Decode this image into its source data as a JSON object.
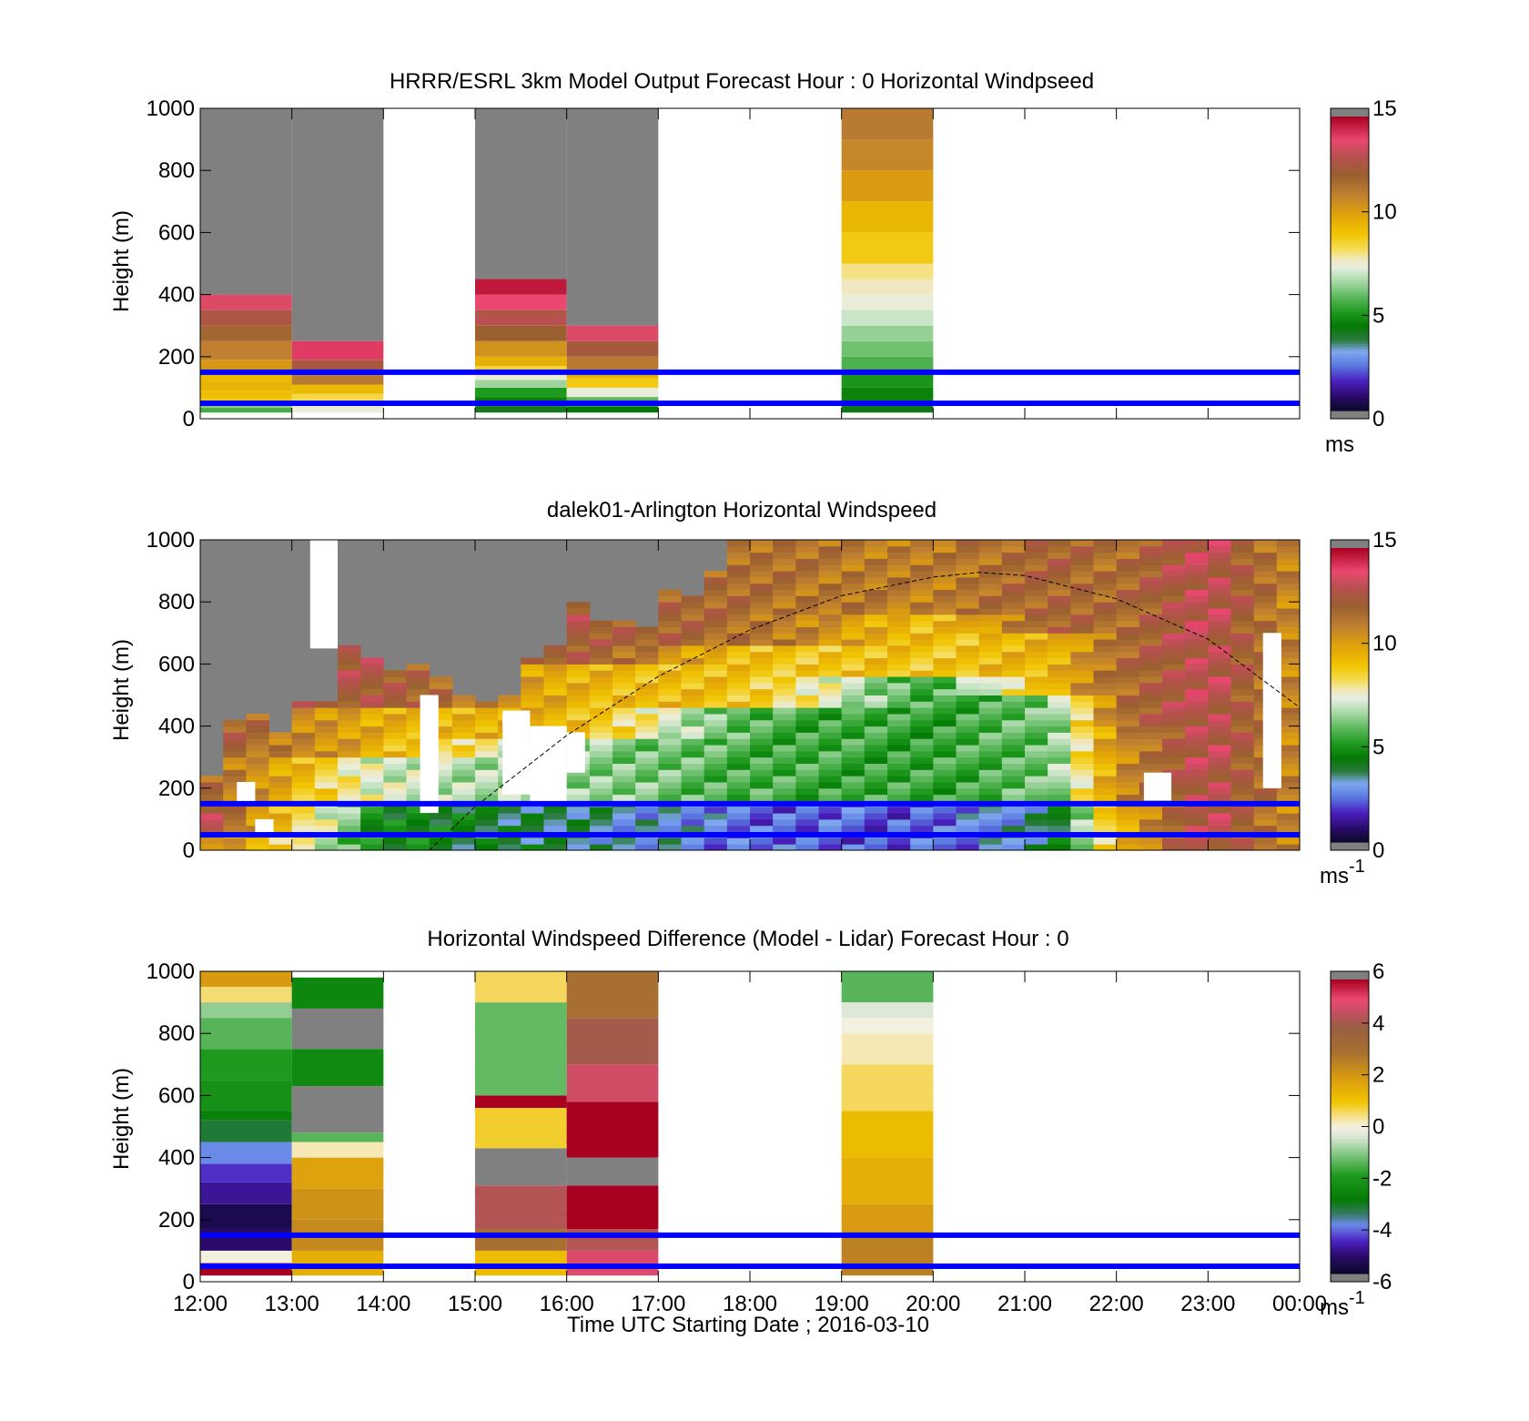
{
  "chart_data": [
    {
      "type": "heatmap",
      "title": "HRRR/ESRL 3km Model Output   Forecast Hour : 0 Horizontal Windpseed",
      "xlabel": "",
      "ylabel": "Height (m)",
      "x_ticks": [
        "12:00",
        "13:00",
        "14:00",
        "15:00",
        "16:00",
        "17:00",
        "18:00",
        "19:00",
        "20:00",
        "21:00",
        "22:00",
        "23:00",
        "00:00"
      ],
      "show_x_tick_labels": false,
      "ylim": [
        0,
        1000
      ],
      "y_ticks": [
        "0",
        "200",
        "400",
        "600",
        "800",
        "1000"
      ],
      "colorbar": {
        "ticks": [
          "0",
          "5",
          "10",
          "15"
        ],
        "range": [
          0,
          15
        ],
        "unit": "ms",
        "unit_sup": ""
      },
      "hlines_m": [
        150,
        50
      ],
      "columns": [
        {
          "x_start_h": 0,
          "x_end_h": 1,
          "top_m": 400,
          "levels": [
            [
              20,
              35,
              5.5
            ],
            [
              35,
              50,
              6.3
            ],
            [
              50,
              65,
              8.8
            ],
            [
              65,
              90,
              9.2
            ],
            [
              90,
              120,
              9.5
            ],
            [
              120,
              150,
              9.3
            ],
            [
              150,
              190,
              10.3
            ],
            [
              190,
              250,
              11.0
            ],
            [
              250,
              300,
              11.8
            ],
            [
              300,
              350,
              12.6
            ],
            [
              350,
              400,
              13.6
            ]
          ]
        },
        {
          "x_start_h": 1,
          "x_end_h": 2,
          "top_m": 250,
          "levels": [
            [
              20,
              40,
              7.4
            ],
            [
              40,
              60,
              7.8
            ],
            [
              60,
              80,
              8.4
            ],
            [
              80,
              110,
              9.3
            ],
            [
              110,
              140,
              11.2
            ],
            [
              140,
              190,
              12.5
            ],
            [
              190,
              250,
              14.0
            ]
          ]
        },
        {
          "x_start_h": 3,
          "x_end_h": 4,
          "top_m": 450,
          "levels": [
            [
              20,
              40,
              4.0
            ],
            [
              40,
              70,
              4.4
            ],
            [
              70,
              100,
              5.0
            ],
            [
              100,
              125,
              6.5
            ],
            [
              125,
              150,
              7.4
            ],
            [
              150,
              170,
              8.5
            ],
            [
              170,
              200,
              9.6
            ],
            [
              200,
              250,
              10.5
            ],
            [
              250,
              300,
              12.0
            ],
            [
              300,
              330,
              13.0
            ],
            [
              330,
              350,
              12.6
            ],
            [
              350,
              400,
              13.8
            ],
            [
              400,
              450,
              14.6
            ]
          ]
        },
        {
          "x_start_h": 4,
          "x_end_h": 5,
          "top_m": 300,
          "levels": [
            [
              20,
              40,
              4.3
            ],
            [
              40,
              70,
              5.8
            ],
            [
              70,
              100,
              7.4
            ],
            [
              100,
              130,
              8.8
            ],
            [
              130,
              160,
              9.5
            ],
            [
              160,
              200,
              11.2
            ],
            [
              200,
              250,
              12.4
            ],
            [
              250,
              300,
              13.6
            ]
          ]
        },
        {
          "x_start_h": 7,
          "x_end_h": 8,
          "top_m": 1000,
          "levels": [
            [
              20,
              50,
              4.1
            ],
            [
              50,
              100,
              4.5
            ],
            [
              100,
              150,
              4.9
            ],
            [
              150,
              200,
              5.6
            ],
            [
              200,
              250,
              6.0
            ],
            [
              250,
              300,
              6.4
            ],
            [
              300,
              350,
              7.0
            ],
            [
              350,
              400,
              7.4
            ],
            [
              400,
              450,
              7.7
            ],
            [
              450,
              500,
              8.0
            ],
            [
              500,
              600,
              8.8
            ],
            [
              600,
              700,
              9.4
            ],
            [
              700,
              800,
              10.2
            ],
            [
              800,
              900,
              10.8
            ],
            [
              900,
              1000,
              11.2
            ]
          ]
        }
      ]
    },
    {
      "type": "heatmap",
      "title": "dalek01-Arlington  Horizontal Windspeed",
      "xlabel": "",
      "ylabel": "Height (m)",
      "x_ticks": [
        "12:00",
        "13:00",
        "14:00",
        "15:00",
        "16:00",
        "17:00",
        "18:00",
        "19:00",
        "20:00",
        "21:00",
        "22:00",
        "23:00",
        "00:00"
      ],
      "show_x_tick_labels": false,
      "ylim": [
        0,
        1000
      ],
      "y_ticks": [
        "0",
        "200",
        "400",
        "600",
        "800",
        "1000"
      ],
      "colorbar": {
        "ticks": [
          "0",
          "5",
          "10",
          "15"
        ],
        "range": [
          0,
          15
        ],
        "unit": "ms",
        "unit_sup": "-1"
      },
      "hlines_m": [
        150,
        50
      ],
      "column_width_h": 0.25,
      "column_tops_m": [
        240,
        420,
        430,
        370,
        470,
        470,
        650,
        610,
        580,
        590,
        560,
        490,
        480,
        490,
        620,
        650,
        800,
        740,
        730,
        720,
        840,
        820,
        900,
        1000,
        1000,
        1000,
        1000,
        1000,
        1000,
        1000,
        1000,
        1000,
        1000,
        1000,
        1000,
        1000,
        1000,
        1000,
        1000,
        1000,
        1000,
        1000,
        1000,
        1000,
        1000,
        1000,
        1000,
        1000
      ],
      "profile_by_hour": [
        {
          "h": 0,
          "levels": [
            [
              0,
              50,
              11.5
            ],
            [
              50,
              150,
              13.2
            ],
            [
              150,
              300,
              12.0
            ],
            [
              300,
              1000,
              12.5
            ]
          ]
        },
        {
          "h": 2,
          "levels": [
            [
              0,
              150,
              4.5
            ],
            [
              150,
              300,
              7.0
            ],
            [
              300,
              450,
              9.5
            ],
            [
              450,
              1000,
              12.5
            ]
          ]
        },
        {
          "h": 4,
          "levels": [
            [
              0,
              150,
              3.5
            ],
            [
              150,
              350,
              6.5
            ],
            [
              350,
              600,
              9.5
            ],
            [
              600,
              1000,
              12.5
            ]
          ]
        },
        {
          "h": 6,
          "levels": [
            [
              0,
              150,
              2.2
            ],
            [
              150,
              450,
              5.5
            ],
            [
              450,
              650,
              9.0
            ],
            [
              650,
              1000,
              11.5
            ]
          ]
        },
        {
          "h": 8,
          "levels": [
            [
              0,
              150,
              2.0
            ],
            [
              150,
              550,
              5.2
            ],
            [
              550,
              750,
              9.0
            ],
            [
              750,
              1000,
              11.0
            ]
          ]
        },
        {
          "h": 9.3,
          "levels": [
            [
              0,
              150,
              3.5
            ],
            [
              150,
              500,
              6.0
            ],
            [
              500,
              700,
              9.5
            ],
            [
              700,
              1000,
              12.0
            ]
          ]
        },
        {
          "h": 10,
          "levels": [
            [
              0,
              150,
              9.5
            ],
            [
              150,
              400,
              10.5
            ],
            [
              400,
              1000,
              11.5
            ]
          ]
        },
        {
          "h": 11,
          "levels": [
            [
              0,
              1000,
              13.2
            ]
          ]
        },
        {
          "h": 12,
          "levels": [
            [
              0,
              1000,
              10.5
            ]
          ]
        }
      ],
      "missing_streaks": [
        [
          0.4,
          0.6,
          150,
          220
        ],
        [
          0.6,
          0.8,
          50,
          100
        ],
        [
          1.2,
          1.5,
          650,
          1000
        ],
        [
          2.4,
          2.6,
          120,
          500
        ],
        [
          3.3,
          3.6,
          180,
          450
        ],
        [
          3.6,
          4.0,
          150,
          400
        ],
        [
          4.0,
          4.2,
          250,
          380
        ],
        [
          10.3,
          10.6,
          160,
          250
        ],
        [
          11.6,
          11.8,
          200,
          700
        ]
      ],
      "elevation_curve": {
        "x_h": [
          2.5,
          3,
          4,
          5,
          6,
          7,
          8,
          8.5,
          9,
          10,
          11,
          12
        ],
        "height_m": [
          0,
          140,
          370,
          560,
          710,
          820,
          880,
          895,
          885,
          810,
          680,
          460
        ]
      }
    },
    {
      "type": "heatmap",
      "title": "Horizontal Windspeed Difference (Model - Lidar) Forecast Hour : 0",
      "xlabel": "Time UTC  Starting Date ; 2016-03-10",
      "ylabel": "Height (m)",
      "x_ticks": [
        "12:00",
        "13:00",
        "14:00",
        "15:00",
        "16:00",
        "17:00",
        "18:00",
        "19:00",
        "20:00",
        "21:00",
        "22:00",
        "23:00",
        "00:00"
      ],
      "show_x_tick_labels": true,
      "ylim": [
        0,
        1000
      ],
      "y_ticks": [
        "0",
        "200",
        "400",
        "600",
        "800",
        "1000"
      ],
      "colorbar": {
        "ticks": [
          "-6",
          "-4",
          "-2",
          "0",
          "2",
          "4",
          "6"
        ],
        "range": [
          -6,
          6
        ],
        "unit": "ms",
        "unit_sup": "-1"
      },
      "hlines_m": [
        150,
        50
      ],
      "columns": [
        {
          "x_start_h": 0,
          "x_end_h": 1,
          "top_m": 1000,
          "levels": [
            [
              20,
              60,
              6.0
            ],
            [
              60,
              100,
              0.0
            ],
            [
              100,
              170,
              -5.3
            ],
            [
              170,
              250,
              -5.6
            ],
            [
              250,
              320,
              -5.0
            ],
            [
              320,
              380,
              -4.6
            ],
            [
              380,
              450,
              -4.0
            ],
            [
              450,
              520,
              -3.3
            ],
            [
              520,
              550,
              -2.8
            ],
            [
              550,
              650,
              -2.3
            ],
            [
              650,
              750,
              -2.0
            ],
            [
              750,
              850,
              -1.5
            ],
            [
              850,
              900,
              -1.0
            ],
            [
              900,
              950,
              0.5
            ],
            [
              950,
              1000,
              2.0
            ]
          ]
        },
        {
          "x_start_h": 1,
          "x_end_h": 2,
          "top_m": 980,
          "levels": [
            [
              20,
              100,
              1.5
            ],
            [
              100,
              200,
              2.4
            ],
            [
              200,
              300,
              2.2
            ],
            [
              300,
              400,
              1.8
            ],
            [
              400,
              450,
              0.2
            ],
            [
              450,
              480,
              -1.5
            ],
            [
              480,
              630,
              -99
            ],
            [
              630,
              750,
              -2.5
            ],
            [
              750,
              880,
              -99
            ],
            [
              880,
              980,
              -2.6
            ]
          ]
        },
        {
          "x_start_h": 3,
          "x_end_h": 4,
          "top_m": 1000,
          "levels": [
            [
              20,
              100,
              1.2
            ],
            [
              100,
              170,
              3.0
            ],
            [
              170,
              310,
              4.4
            ],
            [
              310,
              430,
              -99
            ],
            [
              430,
              560,
              0.8
            ],
            [
              560,
              600,
              6.0
            ],
            [
              600,
              900,
              -1.4
            ],
            [
              900,
              1000,
              0.6
            ]
          ]
        },
        {
          "x_start_h": 4,
          "x_end_h": 5,
          "top_m": 1000,
          "levels": [
            [
              20,
              100,
              5.0
            ],
            [
              100,
              170,
              4.4
            ],
            [
              170,
              310,
              6.0
            ],
            [
              310,
              400,
              -99
            ],
            [
              400,
              580,
              6.0
            ],
            [
              580,
              700,
              4.8
            ],
            [
              700,
              850,
              4.2
            ],
            [
              850,
              1000,
              3.0
            ]
          ]
        },
        {
          "x_start_h": 7,
          "x_end_h": 8,
          "top_m": 1000,
          "levels": [
            [
              20,
              150,
              2.6
            ],
            [
              150,
              250,
              2.0
            ],
            [
              250,
              400,
              1.5
            ],
            [
              400,
              550,
              1.2
            ],
            [
              550,
              700,
              0.6
            ],
            [
              700,
              800,
              0.2
            ],
            [
              800,
              850,
              0.0
            ],
            [
              850,
              900,
              -0.4
            ],
            [
              900,
              1000,
              -1.5
            ]
          ]
        }
      ]
    }
  ]
}
